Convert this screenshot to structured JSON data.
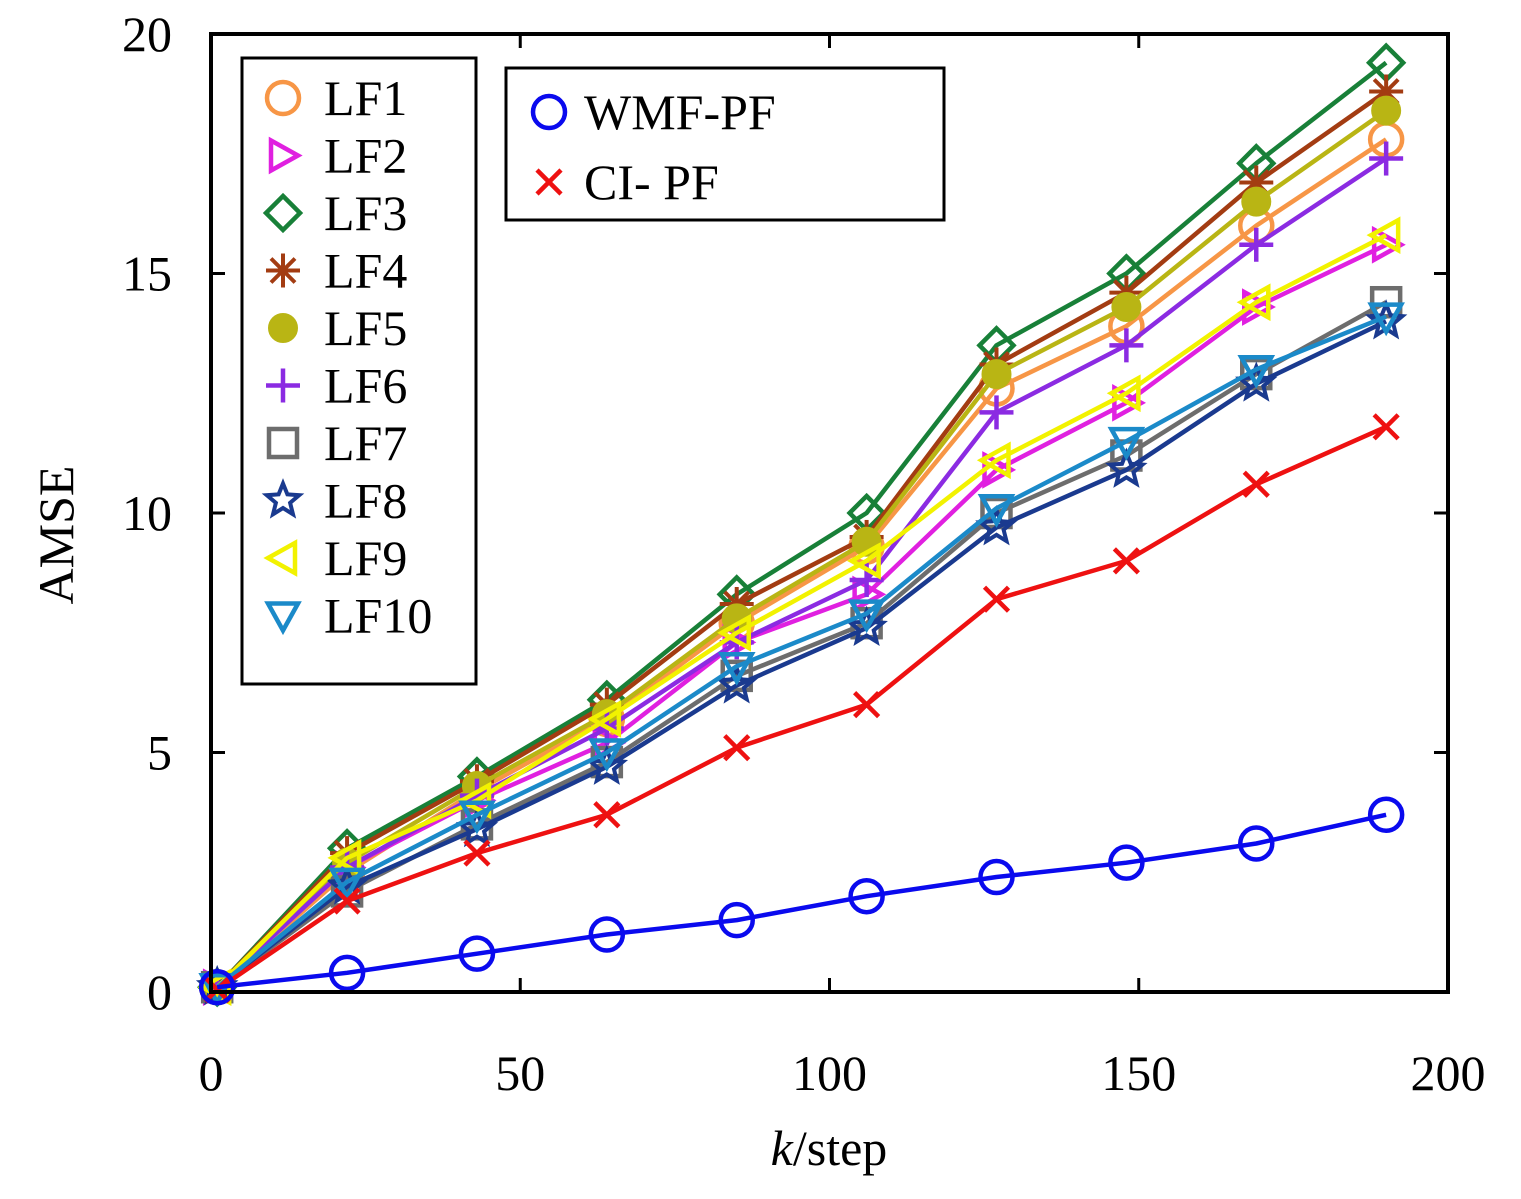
{
  "chart_data": {
    "type": "line",
    "title": "",
    "xlabel_italic": "k",
    "xlabel_rest": "/step",
    "ylabel": "AMSE",
    "xlim": [
      0,
      200
    ],
    "ylim": [
      0,
      20
    ],
    "xticks": [
      0,
      50,
      100,
      150,
      200
    ],
    "yticks": [
      0,
      5,
      10,
      15,
      20
    ],
    "grid": false,
    "legend_left_position": "top-left",
    "legend_right_position": "top-center",
    "x": [
      1,
      22,
      43,
      64,
      85,
      106,
      127,
      148,
      169,
      190
    ],
    "series": [
      {
        "name": "LF1",
        "marker": "circle",
        "color": "#f79646",
        "legend": "left",
        "values": [
          0.1,
          2.5,
          4.2,
          5.7,
          7.7,
          9.3,
          12.6,
          13.9,
          16.0,
          17.8
        ]
      },
      {
        "name": "LF2",
        "marker": "triangle-right",
        "color": "#e020e0",
        "legend": "left",
        "values": [
          0.1,
          2.6,
          4.0,
          5.2,
          7.3,
          8.3,
          10.9,
          12.3,
          14.3,
          15.6
        ]
      },
      {
        "name": "LF3",
        "marker": "diamond",
        "color": "#188038",
        "legend": "left",
        "values": [
          0.1,
          3.0,
          4.5,
          6.1,
          8.3,
          10.0,
          13.5,
          15.0,
          17.3,
          19.4
        ]
      },
      {
        "name": "LF4",
        "marker": "asterisk",
        "color": "#a33c12",
        "legend": "left",
        "values": [
          0.1,
          2.9,
          4.4,
          6.0,
          8.1,
          9.5,
          13.1,
          14.6,
          16.9,
          18.8
        ]
      },
      {
        "name": "LF5",
        "marker": "filled-circle",
        "color": "#b9b514",
        "legend": "left",
        "values": [
          0.1,
          2.7,
          4.3,
          5.8,
          7.8,
          9.4,
          12.9,
          14.3,
          16.5,
          18.4
        ]
      },
      {
        "name": "LF6",
        "marker": "plus",
        "color": "#8b2be2",
        "legend": "left",
        "values": [
          0.1,
          2.6,
          4.1,
          5.5,
          7.3,
          8.6,
          12.1,
          13.5,
          15.6,
          17.4
        ]
      },
      {
        "name": "LF7",
        "marker": "square",
        "color": "#6d6d6d",
        "legend": "left",
        "values": [
          0.1,
          2.1,
          3.5,
          4.8,
          6.6,
          7.7,
          10.0,
          11.2,
          12.9,
          14.4
        ]
      },
      {
        "name": "LF8",
        "marker": "star",
        "color": "#1a3a8f",
        "legend": "left",
        "values": [
          0.1,
          2.2,
          3.4,
          4.7,
          6.4,
          7.6,
          9.7,
          10.9,
          12.7,
          14.0
        ]
      },
      {
        "name": "LF9",
        "marker": "triangle-left",
        "color": "#f2f200",
        "legend": "left",
        "values": [
          0.1,
          2.8,
          4.0,
          5.7,
          7.5,
          9.0,
          11.1,
          12.5,
          14.4,
          15.8
        ]
      },
      {
        "name": "LF10",
        "marker": "triangle-down",
        "color": "#1b8ac9",
        "legend": "left",
        "values": [
          0.1,
          2.3,
          3.7,
          5.0,
          6.8,
          7.9,
          10.1,
          11.5,
          13.0,
          14.1
        ]
      },
      {
        "name": "CI- PF",
        "marker": "x",
        "color": "#ee1111",
        "legend": "right",
        "values": [
          0.05,
          1.9,
          2.9,
          3.7,
          5.1,
          6.0,
          8.2,
          9.0,
          10.6,
          11.8
        ]
      },
      {
        "name": "WMF-PF",
        "marker": "circle",
        "color": "#0a0aee",
        "legend": "right",
        "values": [
          0.1,
          0.4,
          0.8,
          1.2,
          1.5,
          2.0,
          2.4,
          2.7,
          3.1,
          3.7
        ]
      }
    ],
    "legend_right_order": [
      "WMF-PF",
      "CI- PF"
    ]
  }
}
